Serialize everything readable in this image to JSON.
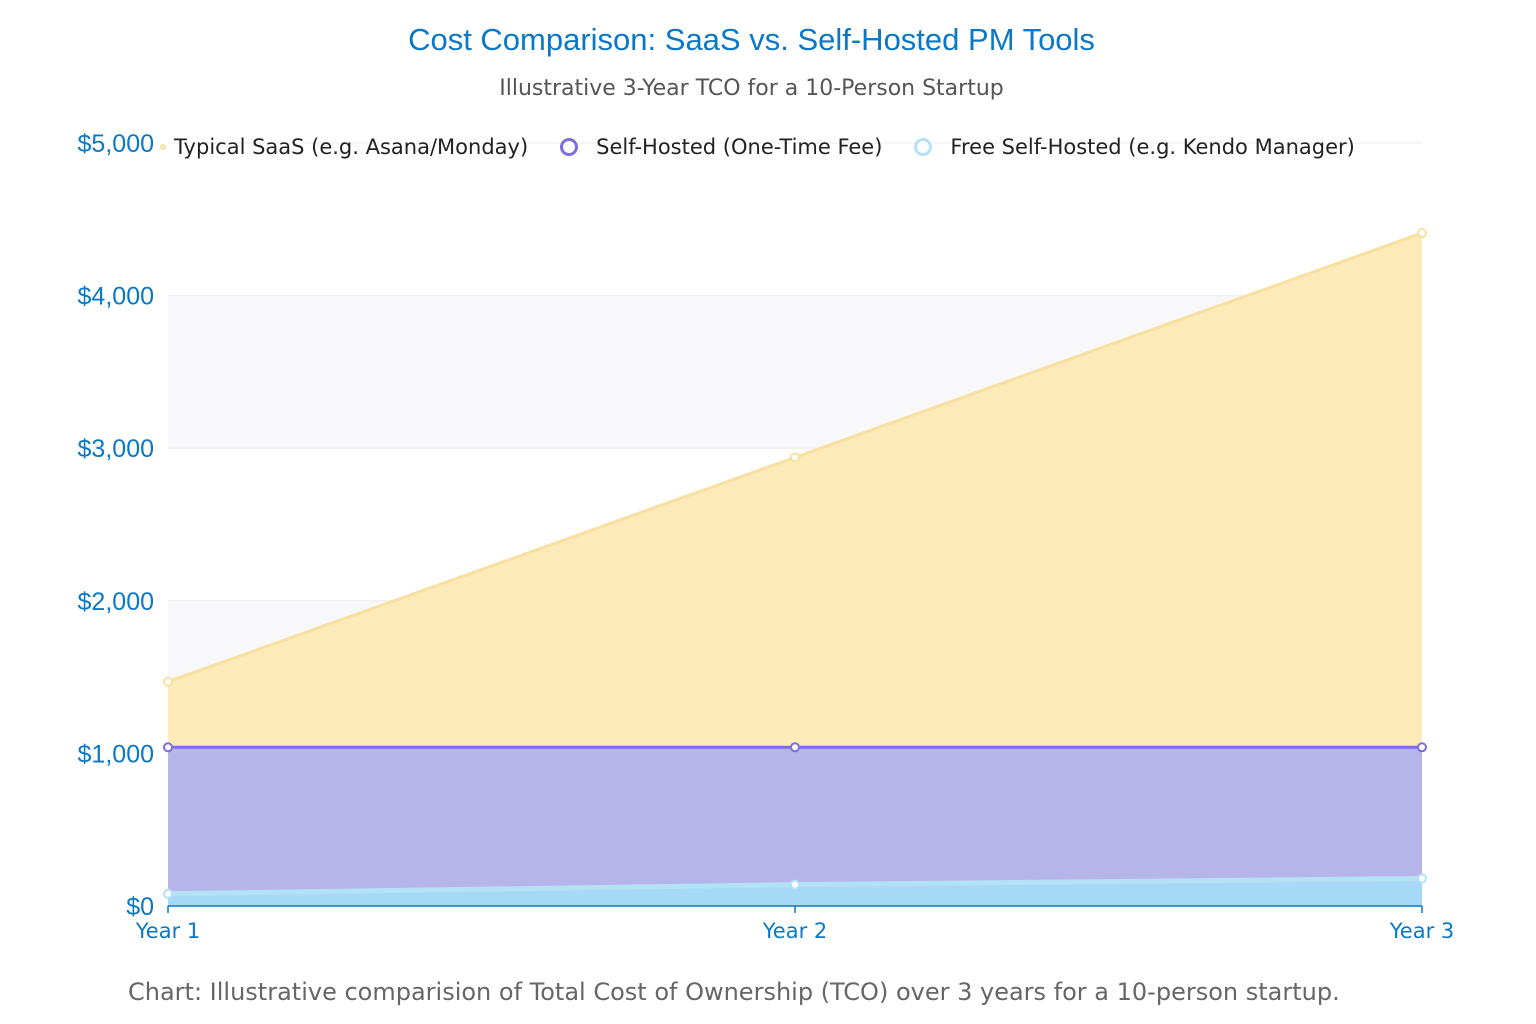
{
  "title": "Cost Comparison: SaaS vs. Self-Hosted PM Tools",
  "subtitle": "Illustrative 3-Year TCO for a 10-Person Startup",
  "caption": "Chart: Illustrative comparision of Total Cost of Ownership (TCO) over 3 years for a 10-person startup.",
  "chart_data": {
    "type": "area",
    "categories": [
      "Year 1",
      "Year 2",
      "Year 3"
    ],
    "series": [
      {
        "name": "Typical SaaS  (e.g. Asana/Monday)",
        "values": [
          1470,
          2940,
          4410
        ],
        "line_color": "#f9dfa0",
        "fill_color": "#fcebb9"
      },
      {
        "name": "Self-Hosted (One-Time Fee)",
        "values": [
          1040,
          1040,
          1040
        ],
        "line_color": "#7c6ee0",
        "fill_color": "#b6b5e9"
      },
      {
        "name": "Free Self-Hosted (e.g. Kendo Manager)",
        "values": [
          80,
          140,
          180
        ],
        "line_color": "#b3e2f7",
        "fill_color": "#a5d9f6"
      }
    ],
    "ylim": [
      0,
      5000
    ],
    "yticks": [
      0,
      1000,
      2000,
      3000,
      4000,
      5000
    ],
    "ytick_labels": [
      "$0",
      "$1,000",
      "$2,000",
      "$3,000",
      "$4,000",
      "$5,000"
    ],
    "xlabel": "",
    "ylabel": "",
    "grid": true,
    "legend_position": "top"
  }
}
